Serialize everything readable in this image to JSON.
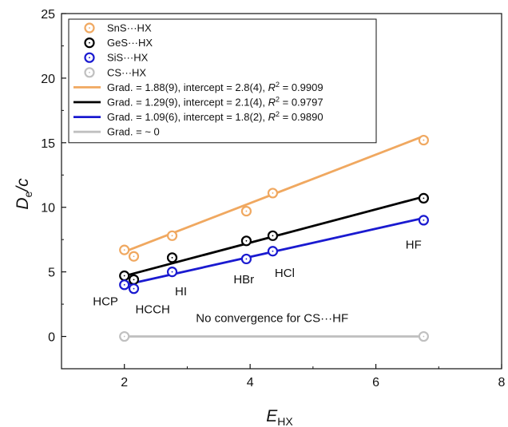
{
  "chart_data": {
    "type": "scatter",
    "xlabel": {
      "main": "E",
      "sub": "HX"
    },
    "ylabel": {
      "D": "D",
      "dsub": "e",
      "rest": "/c"
    },
    "xlim": [
      1,
      8
    ],
    "ylim": [
      -2.5,
      25
    ],
    "xticks": [
      2,
      4,
      6,
      8
    ],
    "yticks": [
      0,
      5,
      10,
      15,
      20,
      25
    ],
    "xtick_labels": [
      "2",
      "4",
      "6",
      "8"
    ],
    "ytick_labels": [
      "0",
      "5",
      "10",
      "15",
      "20",
      "25"
    ],
    "grid": false,
    "legend_position": "top-left",
    "series": [
      {
        "name": "SnS···HX",
        "color": "#f0a860",
        "x": [
          2.0,
          2.15,
          2.76,
          3.94,
          4.36,
          6.76
        ],
        "y": [
          6.7,
          6.2,
          7.8,
          9.7,
          11.1,
          15.2
        ],
        "fit": {
          "label": "Grad. = 1.88(9), intercept = 2.8(4), R2 = 0.9909",
          "gradient": 1.88,
          "intercept": 2.8
        }
      },
      {
        "name": "GeS···HX",
        "color": "#000000",
        "x": [
          2.0,
          2.15,
          2.76,
          3.94,
          4.36,
          6.76
        ],
        "y": [
          4.7,
          4.4,
          6.1,
          7.4,
          7.8,
          10.7
        ],
        "fit": {
          "label": "Grad. = 1.29(9), intercept = 2.1(4), R2 = 0.9797",
          "gradient": 1.29,
          "intercept": 2.1
        }
      },
      {
        "name": "SiS···HX",
        "color": "#1a1ad0",
        "x": [
          2.0,
          2.15,
          2.76,
          3.94,
          4.36,
          6.76
        ],
        "y": [
          4.0,
          3.7,
          5.0,
          6.0,
          6.6,
          9.0
        ],
        "fit": {
          "label": "Grad. = 1.09(6), intercept = 1.8(2), R2 = 0.9890",
          "gradient": 1.09,
          "intercept": 1.8
        }
      },
      {
        "name": "CS···HX",
        "color": "#c0c0c0",
        "x": [
          2.0,
          6.76
        ],
        "y": [
          0.0,
          0.0
        ],
        "fit": {
          "label": "Grad. = ~ 0",
          "gradient": 0,
          "intercept": 0
        }
      }
    ],
    "legend_fit_parts": [
      {
        "grad": "Grad. = 1.88(9), intercept = 2.8(4), ",
        "r": "R",
        "sup": "2",
        "val": " = 0.9909"
      },
      {
        "grad": "Grad. = 1.29(9), intercept = 2.1(4), ",
        "r": "R",
        "sup": "2",
        "val": " = 0.9797"
      },
      {
        "grad": "Grad. = 1.09(6), intercept = 1.8(2), ",
        "r": "R",
        "sup": "2",
        "val": " = 0.9890"
      },
      {
        "grad": "Grad. = ~ 0",
        "r": "",
        "sup": "",
        "val": ""
      }
    ],
    "annotations": [
      {
        "text": "HCP",
        "x": 1.7,
        "y": 2.4
      },
      {
        "text": "HCCH",
        "x": 2.45,
        "y": 1.8
      },
      {
        "text": "HI",
        "x": 2.9,
        "y": 3.2
      },
      {
        "text": "HBr",
        "x": 3.9,
        "y": 4.1
      },
      {
        "text": "HCl",
        "x": 4.55,
        "y": 4.6
      },
      {
        "text": "HF",
        "x": 6.6,
        "y": 6.8
      },
      {
        "text": "No convergence for CS···HF",
        "x": 4.35,
        "y": 1.1
      }
    ]
  }
}
